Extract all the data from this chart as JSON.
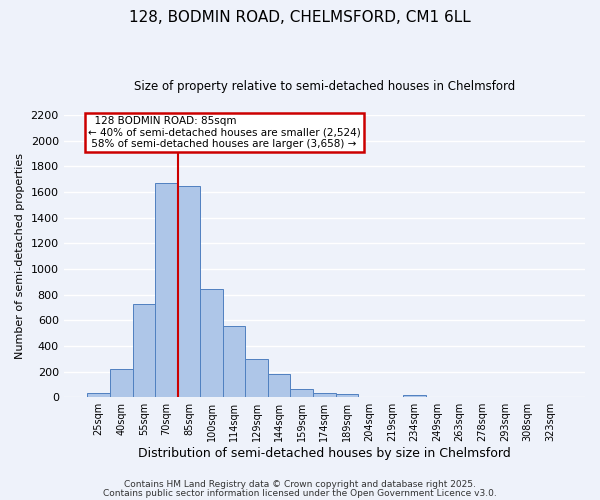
{
  "title": "128, BODMIN ROAD, CHELMSFORD, CM1 6LL",
  "subtitle": "Size of property relative to semi-detached houses in Chelmsford",
  "xlabel": "Distribution of semi-detached houses by size in Chelmsford",
  "ylabel": "Number of semi-detached properties",
  "categories": [
    "25sqm",
    "40sqm",
    "55sqm",
    "70sqm",
    "85sqm",
    "100sqm",
    "114sqm",
    "129sqm",
    "144sqm",
    "159sqm",
    "174sqm",
    "189sqm",
    "204sqm",
    "219sqm",
    "234sqm",
    "249sqm",
    "263sqm",
    "278sqm",
    "293sqm",
    "308sqm",
    "323sqm"
  ],
  "bar_values": [
    35,
    220,
    730,
    1670,
    1650,
    840,
    555,
    300,
    180,
    65,
    35,
    25,
    0,
    0,
    18,
    0,
    0,
    0,
    0,
    0,
    0
  ],
  "bar_color": "#aec6e8",
  "bar_edge_color": "#5080c0",
  "background_color": "#eef2fa",
  "grid_color": "#ffffff",
  "vline_x_between": 3.5,
  "property_label": "128 BODMIN ROAD: 85sqm",
  "pct_smaller": 40,
  "pct_larger": 58,
  "count_smaller": 2524,
  "count_larger": 3658,
  "annotation_box_color": "#cc0000",
  "vline_color": "#cc0000",
  "ylim": [
    0,
    2200
  ],
  "yticks": [
    0,
    200,
    400,
    600,
    800,
    1000,
    1200,
    1400,
    1600,
    1800,
    2000,
    2200
  ],
  "footer1": "Contains HM Land Registry data © Crown copyright and database right 2025.",
  "footer2": "Contains public sector information licensed under the Open Government Licence v3.0."
}
